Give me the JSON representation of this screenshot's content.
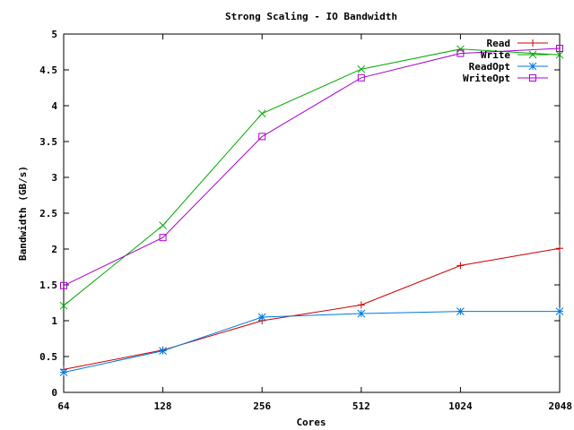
{
  "chart_data": {
    "type": "line",
    "title": "Strong Scaling - IO Bandwidth",
    "xlabel": "Cores",
    "ylabel": "Bandwidth (GB/s)",
    "x_categories": [
      "64",
      "128",
      "256",
      "512",
      "1024",
      "2048"
    ],
    "ylim": [
      0,
      5
    ],
    "yticks": [
      "0",
      "0.5",
      "1",
      "1.5",
      "2",
      "2.5",
      "3",
      "3.5",
      "4",
      "4.5",
      "5"
    ],
    "legend_position": "top-right",
    "grid": false,
    "series": [
      {
        "name": "Read",
        "color": "#cc0000",
        "marker": "plus",
        "values": [
          0.32,
          0.59,
          1.0,
          1.22,
          1.77,
          2.01
        ]
      },
      {
        "name": "Write",
        "color": "#00aa00",
        "marker": "cross",
        "values": [
          1.21,
          2.33,
          3.89,
          4.51,
          4.79,
          4.71
        ]
      },
      {
        "name": "ReadOpt",
        "color": "#0077dd",
        "marker": "star",
        "values": [
          0.28,
          0.58,
          1.05,
          1.1,
          1.13,
          1.13
        ]
      },
      {
        "name": "WriteOpt",
        "color": "#aa00cc",
        "marker": "square",
        "values": [
          1.49,
          2.16,
          3.57,
          4.39,
          4.73,
          4.8
        ]
      }
    ]
  }
}
